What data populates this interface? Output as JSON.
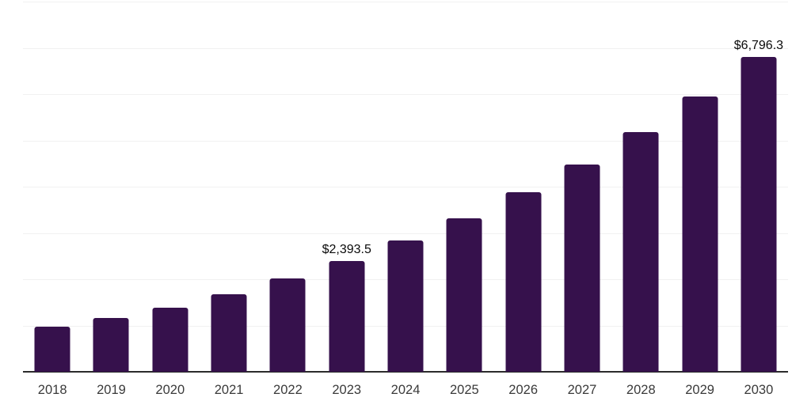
{
  "chart_data": {
    "type": "bar",
    "title": "",
    "xlabel": "",
    "ylabel": "",
    "categories": [
      "2018",
      "2019",
      "2020",
      "2021",
      "2022",
      "2023",
      "2024",
      "2025",
      "2026",
      "2027",
      "2028",
      "2029",
      "2030"
    ],
    "values": [
      975,
      1160,
      1390,
      1680,
      2015,
      2393.5,
      2840,
      3325,
      3880,
      4485,
      5175,
      5955,
      6796.3
    ],
    "point_labels": {
      "2023": "$2,393.5",
      "2030": "$6,796.3"
    },
    "ylim": [
      0,
      8000
    ],
    "grid_step": 1000,
    "grid": "horizontal-only",
    "legend_position": "none",
    "y_tick_labels_visible": false,
    "colors": {
      "bar_fill": "#36114C",
      "gridline": "#F1F1F1",
      "axis_line": "#2B2B2B",
      "tick_label": "#3A3A3A",
      "value_label": "#0A0A0A",
      "background": "#FFFFFF"
    }
  }
}
